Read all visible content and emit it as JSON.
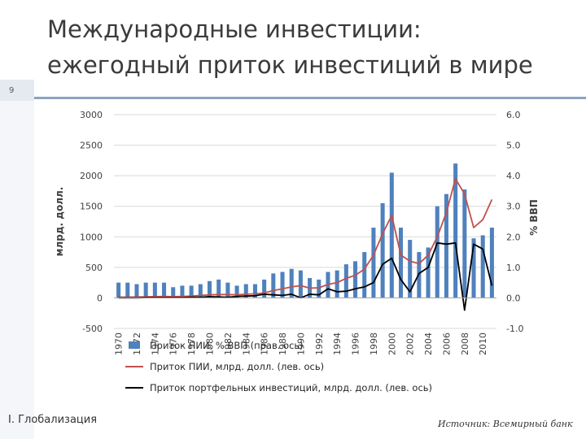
{
  "slide": {
    "title_line1": "Международные инвестиции:",
    "title_line2": "ежегодный приток инвестиций в мире",
    "slide_number": "9",
    "footer_left": "I. Глобализация",
    "source": "Источник: Всемирный банк"
  },
  "colors": {
    "bar": "#4f81bd",
    "red_line": "#c0504d",
    "black_line": "#000000",
    "grid": "#d9d9d9",
    "axis_text": "#404040"
  },
  "chart_data": {
    "type": "bar",
    "ylabel": "млрд. долл.",
    "ylabel_right": "% ВВП",
    "ylim": [
      -500,
      3000
    ],
    "ylim_right": [
      -1.0,
      6.0
    ],
    "yticks": [
      "3000",
      "2500",
      "2000",
      "1500",
      "1000",
      "500",
      "0",
      "-500"
    ],
    "yticks_right": [
      "6.0",
      "5.0",
      "4.0",
      "3.0",
      "2.0",
      "1.0",
      "0.0",
      "-1.0"
    ],
    "grid": true,
    "legend_position": "bottom",
    "x": [
      1970,
      1971,
      1972,
      1973,
      1974,
      1975,
      1976,
      1977,
      1978,
      1979,
      1980,
      1981,
      1982,
      1983,
      1984,
      1985,
      1986,
      1987,
      1988,
      1989,
      1990,
      1991,
      1992,
      1993,
      1994,
      1995,
      1996,
      1997,
      1998,
      1999,
      2000,
      2001,
      2002,
      2003,
      2004,
      2005,
      2006,
      2007,
      2008,
      2009,
      2010,
      2011
    ],
    "xtick_labels": [
      "1970",
      "1972",
      "1974",
      "1976",
      "1978",
      "1980",
      "1982",
      "1984",
      "1986",
      "1988",
      "1990",
      "1992",
      "1994",
      "1996",
      "1998",
      "2000",
      "2002",
      "2004",
      "2006",
      "2008",
      "2010"
    ],
    "series": [
      {
        "name": "Приток ПИИ, % ВВП (прав. ось)",
        "type": "bar",
        "axis": "right",
        "values": [
          0.5,
          0.5,
          0.45,
          0.5,
          0.5,
          0.5,
          0.35,
          0.4,
          0.4,
          0.45,
          0.55,
          0.6,
          0.5,
          0.4,
          0.45,
          0.45,
          0.6,
          0.8,
          0.85,
          0.95,
          0.9,
          0.65,
          0.6,
          0.85,
          0.9,
          1.1,
          1.2,
          1.5,
          2.3,
          3.1,
          4.1,
          2.3,
          1.9,
          1.5,
          1.65,
          3.0,
          3.4,
          4.4,
          3.55,
          1.95,
          2.05,
          2.3
        ]
      },
      {
        "name": "Приток ПИИ, млрд. долл. (лев. ось)",
        "type": "line",
        "axis": "left",
        "values": [
          10,
          12,
          14,
          18,
          20,
          25,
          20,
          25,
          30,
          40,
          50,
          55,
          55,
          50,
          60,
          65,
          80,
          120,
          150,
          180,
          200,
          160,
          165,
          220,
          250,
          320,
          370,
          470,
          700,
          1050,
          1350,
          700,
          600,
          560,
          700,
          1000,
          1400,
          1950,
          1700,
          1150,
          1280,
          1610
        ]
      },
      {
        "name": "Приток портфельных инвестиций, млрд. долл. (лев. ось)",
        "type": "line",
        "axis": "left",
        "values": [
          0,
          0,
          0,
          5,
          5,
          5,
          5,
          5,
          10,
          10,
          20,
          15,
          10,
          25,
          30,
          35,
          60,
          50,
          40,
          60,
          0,
          60,
          50,
          150,
          100,
          110,
          150,
          180,
          250,
          550,
          650,
          300,
          100,
          400,
          500,
          900,
          880,
          900,
          -200,
          880,
          800,
          200
        ]
      }
    ]
  }
}
